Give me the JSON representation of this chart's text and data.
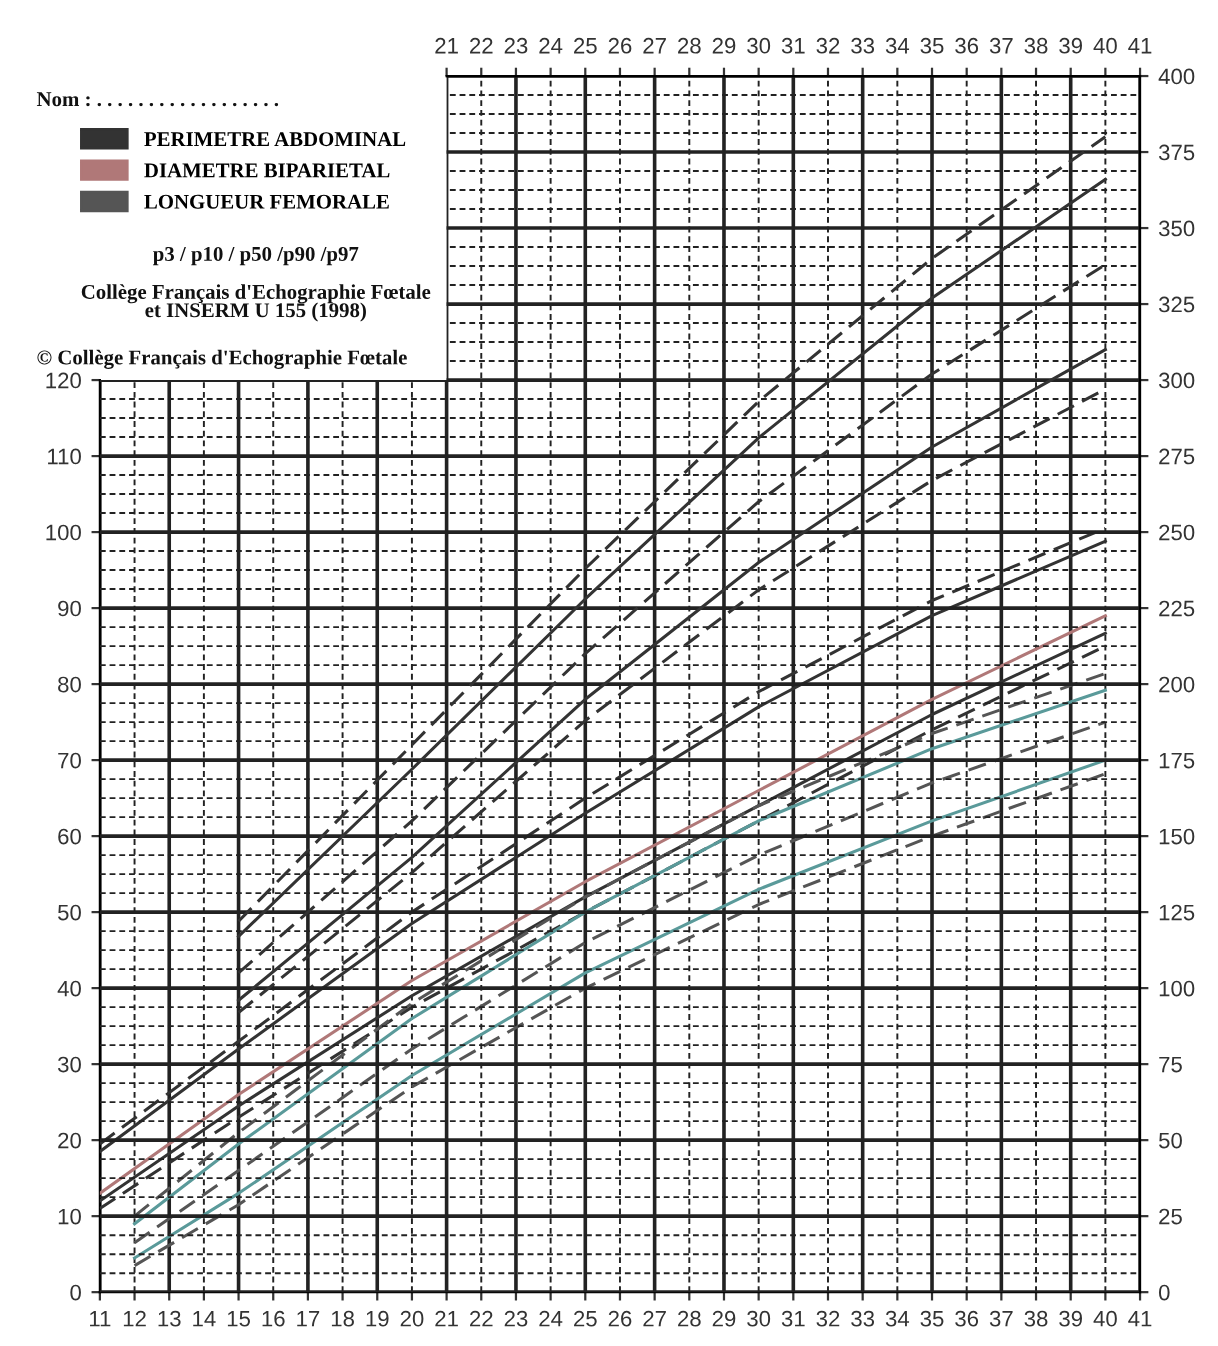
{
  "chart_data": {
    "type": "line",
    "annotations": [
      "Nom : . . . . . . . . . . . . . . . . . .",
      "p3 / p10 / p50 /p90 /p97",
      "Collège Français d'Echographie Fœtale\net INSERM U 155 (1998)",
      "© Collège Français d'Echographie Fœtale"
    ],
    "xlim": [
      11,
      41
    ],
    "xticks": [
      11,
      12,
      13,
      14,
      15,
      16,
      17,
      18,
      19,
      20,
      21,
      22,
      23,
      24,
      25,
      26,
      27,
      28,
      29,
      30,
      31,
      32,
      33,
      34,
      35,
      36,
      37,
      38,
      39,
      40,
      41
    ],
    "x2lim": [
      11,
      41
    ],
    "x2ticks": [
      21,
      22,
      23,
      24,
      25,
      26,
      27,
      28,
      29,
      30,
      31,
      32,
      33,
      34,
      35,
      36,
      37,
      38,
      39,
      40,
      41
    ],
    "ylim": [
      0,
      160
    ],
    "yticks": [
      0,
      10,
      20,
      30,
      40,
      50,
      60,
      70,
      80,
      90,
      100,
      110,
      120
    ],
    "y2lim": [
      0,
      400
    ],
    "y2ticks": [
      0,
      25,
      50,
      75,
      100,
      125,
      150,
      175,
      200,
      225,
      250,
      275,
      300,
      325,
      350,
      375,
      400
    ],
    "grid": true,
    "legend": "top left",
    "series": [
      {
        "axis": "y2",
        "color": "#333333",
        "line_style": "dashed",
        "x": [
          15,
          20,
          25,
          30,
          35,
          40
        ],
        "values": [
          122,
          180,
          238,
          293,
          340,
          380
        ]
      },
      {
        "axis": "y2",
        "color": "#333333",
        "line_style": "solid",
        "x": [
          15,
          20,
          25,
          30,
          35,
          40
        ],
        "values": [
          117,
          172,
          228,
          281,
          327,
          366
        ]
      },
      {
        "axis": "y2",
        "name": "PERIMETRE ABDOMINAL",
        "color": "#333333",
        "line_style": "dashed",
        "x": [
          15,
          20,
          25,
          30,
          35,
          40
        ],
        "values": [
          105,
          155,
          210,
          260,
          302,
          338
        ]
      },
      {
        "axis": "y2",
        "color": "#333333",
        "line_style": "solid",
        "x": [
          15,
          20,
          25,
          30,
          35,
          40
        ],
        "values": [
          96,
          143,
          195,
          240,
          278,
          310
        ]
      },
      {
        "axis": "y2",
        "color": "#333333",
        "line_style": "dashed",
        "x": [
          15,
          20,
          25,
          30,
          35,
          40
        ],
        "values": [
          92,
          138,
          188,
          231,
          267,
          297
        ]
      },
      {
        "color": "#333333",
        "line_style": "dashed",
        "x": [
          11,
          15,
          20,
          25,
          30,
          35,
          40
        ],
        "values": [
          19.5,
          33,
          50,
          65,
          79,
          91,
          100.5
        ]
      },
      {
        "color": "#333333",
        "line_style": "solid",
        "x": [
          11,
          15,
          20,
          25,
          30,
          35,
          40
        ],
        "values": [
          18.5,
          32,
          48.5,
          63,
          77,
          89,
          98.8
        ]
      },
      {
        "name": "DIAMETRE BIPARIETAL",
        "color": "#b07878",
        "line_style": "solid",
        "x": [
          11,
          15,
          20,
          25,
          30,
          35,
          40
        ],
        "values": [
          13,
          26,
          41,
          54,
          66,
          78,
          89
        ]
      },
      {
        "color": "#333333",
        "line_style": "solid",
        "x": [
          11,
          15,
          20,
          25,
          30,
          35,
          40
        ],
        "values": [
          12,
          24.5,
          39,
          52,
          64,
          76,
          86.7
        ]
      },
      {
        "color": "#333333",
        "line_style": "dashed",
        "x": [
          11,
          15,
          20,
          25,
          30,
          35,
          40
        ],
        "values": [
          11,
          23,
          37.5,
          50,
          62,
          74,
          85
        ]
      },
      {
        "color": "#555555",
        "line_style": "dashed",
        "x": [
          12,
          15,
          20,
          25,
          30,
          35,
          40
        ],
        "values": [
          10,
          21,
          38,
          52,
          64,
          73.5,
          81.4
        ]
      },
      {
        "color": "#5a9a9a",
        "line_style": "solid",
        "x": [
          12,
          15,
          20,
          25,
          30,
          35,
          40
        ],
        "values": [
          9,
          19.5,
          36,
          50,
          62,
          71.5,
          79.2
        ]
      },
      {
        "name": "LONGUEUR FEMORALE",
        "color": "#555555",
        "line_style": "dashed",
        "x": [
          12,
          15,
          20,
          25,
          30,
          35,
          40
        ],
        "values": [
          6.5,
          16,
          32,
          46,
          57.5,
          67,
          75
        ]
      },
      {
        "color": "#5a9a9a",
        "line_style": "solid",
        "x": [
          12,
          15,
          20,
          25,
          30,
          35,
          40
        ],
        "values": [
          4.5,
          13,
          28.5,
          42,
          53,
          62,
          70
        ]
      },
      {
        "color": "#555555",
        "line_style": "dashed",
        "x": [
          12,
          15,
          20,
          25,
          30,
          35,
          40
        ],
        "values": [
          3.5,
          11.5,
          27,
          40,
          51,
          60,
          68.2
        ]
      }
    ]
  }
}
